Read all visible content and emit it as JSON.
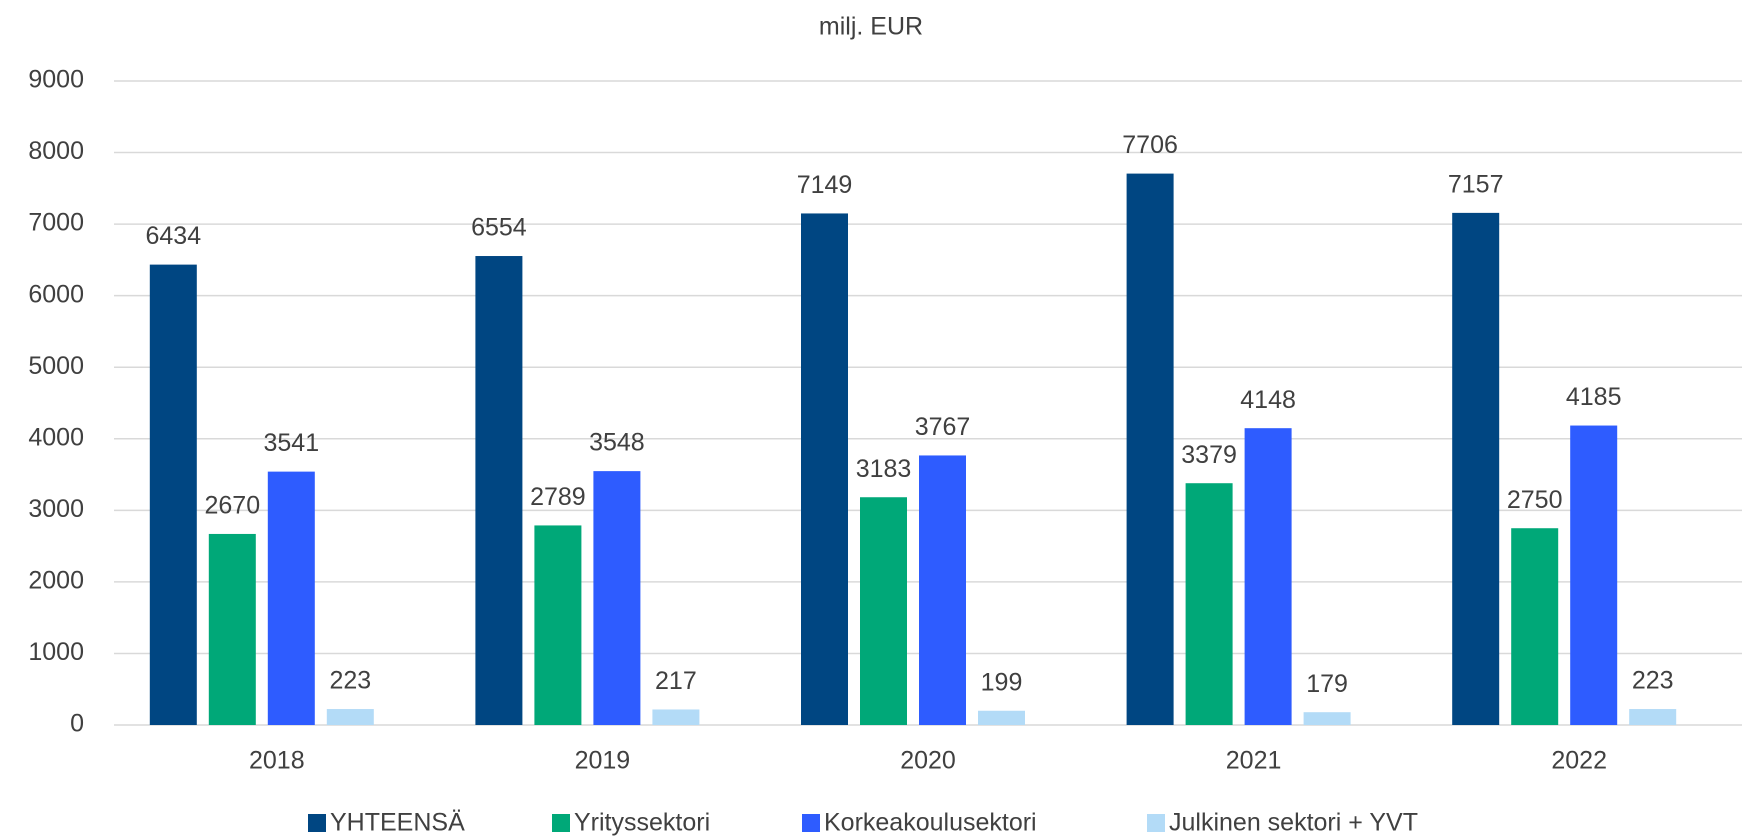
{
  "chart_data": {
    "type": "bar",
    "title": "milj. EUR",
    "categories": [
      "2018",
      "2019",
      "2020",
      "2021",
      "2022"
    ],
    "series": [
      {
        "name": "YHTEENSÄ",
        "color": "#004682",
        "values": [
          6434,
          6554,
          7149,
          7706,
          7157
        ]
      },
      {
        "name": "Yrityssektori",
        "color": "#00a878",
        "values": [
          2670,
          2789,
          3183,
          3379,
          2750
        ]
      },
      {
        "name": "Korkeakoulusektori",
        "color": "#2e5cff",
        "values": [
          3541,
          3548,
          3767,
          4148,
          4185
        ]
      },
      {
        "name": "Julkinen sektori + YVT",
        "color": "#b3dbf7",
        "values": [
          223,
          217,
          199,
          179,
          223
        ]
      }
    ],
    "ylim": [
      0,
      9000
    ],
    "yticks": [
      0,
      1000,
      2000,
      3000,
      4000,
      5000,
      6000,
      7000,
      8000,
      9000
    ],
    "grid": true,
    "legend": "bottom"
  }
}
